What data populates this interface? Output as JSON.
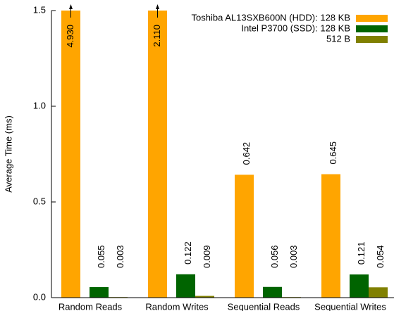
{
  "chart_data": {
    "type": "bar",
    "y_label": "Average Time (ms)",
    "categories": [
      "Random Reads",
      "Random Writes",
      "Sequential Reads",
      "Sequential Writes"
    ],
    "series": [
      {
        "name": "Toshiba AL13SXB600N (HDD): 128 KB",
        "color": "#ffa500",
        "values": [
          4.93,
          2.11,
          0.642,
          0.645
        ],
        "value_labels": [
          "4.930",
          "2.110",
          "0.642",
          "0.645"
        ]
      },
      {
        "name": "Intel P3700 (SSD): 128 KB",
        "color": "#006400",
        "values": [
          0.055,
          0.122,
          0.056,
          0.121
        ],
        "value_labels": [
          "0.055",
          "0.122",
          "0.056",
          "0.121"
        ]
      },
      {
        "name": "512 B",
        "color": "#808000",
        "values": [
          0.003,
          0.009,
          0.003,
          0.054
        ],
        "value_labels": [
          "0.003",
          "0.009",
          "0.003",
          "0.054"
        ]
      }
    ],
    "ylim": [
      0,
      1.5
    ],
    "yticks": [
      {
        "value": 0,
        "label": "0.0"
      },
      0.5,
      {
        "value": 1,
        "label": "1.0"
      },
      {
        "value": 1.5,
        "label": "1.5"
      }
    ],
    "legend": "top-right"
  }
}
